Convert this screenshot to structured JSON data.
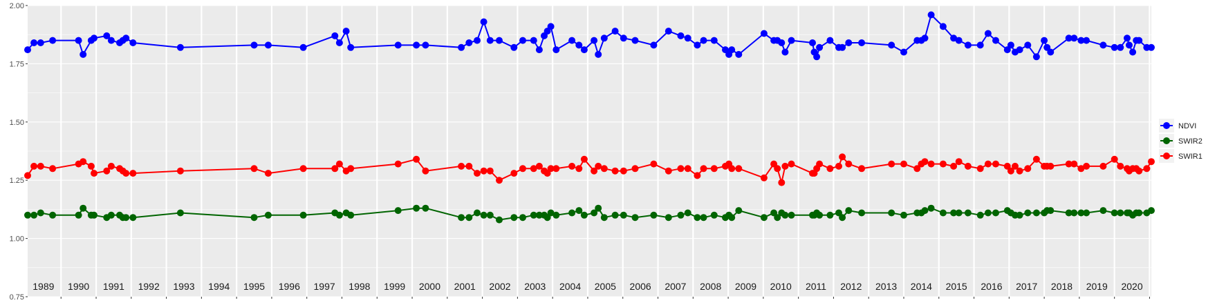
{
  "chart_data": {
    "type": "line",
    "title": "",
    "xlabel": "",
    "ylabel": "",
    "ylim": [
      0.75,
      2.0
    ],
    "yticks": [
      "0.75",
      "1.00",
      "1.25",
      "1.50",
      "1.75",
      "2.00"
    ],
    "xlim": [
      1988.55,
      2020.55
    ],
    "year_labels": [
      "1989",
      "1990",
      "1991",
      "1992",
      "1993",
      "1994",
      "1995",
      "1996",
      "1997",
      "1998",
      "1999",
      "2000",
      "2001",
      "2002",
      "2003",
      "2004",
      "2005",
      "2006",
      "2007",
      "2008",
      "2009",
      "2010",
      "2011",
      "2012",
      "2013",
      "2014",
      "2015",
      "2016",
      "2017",
      "2018",
      "2019",
      "2020"
    ],
    "grid": true,
    "legend_position": "right",
    "series": [
      {
        "name": "NDVI",
        "color": "#0000ff",
        "x": [
          1988.55,
          1988.73,
          1988.92,
          1989.26,
          1990.0,
          1990.13,
          1990.36,
          1990.44,
          1990.8,
          1990.93,
          1991.17,
          1991.26,
          1991.35,
          1991.55,
          1992.9,
          1995.0,
          1995.4,
          1996.4,
          1997.3,
          1997.43,
          1997.62,
          1997.75,
          1999.1,
          1999.62,
          1999.88,
          2000.9,
          2001.12,
          2001.35,
          2001.54,
          2001.72,
          2001.98,
          2002.4,
          2002.65,
          2002.96,
          2003.12,
          2003.26,
          2003.35,
          2003.45,
          2003.6,
          2004.05,
          2004.25,
          2004.4,
          2004.68,
          2004.8,
          2004.97,
          2005.28,
          2005.52,
          2005.85,
          2006.38,
          2006.8,
          2007.15,
          2007.35,
          2007.62,
          2007.8,
          2008.1,
          2008.42,
          2008.52,
          2008.6,
          2008.8,
          2009.52,
          2009.8,
          2009.9,
          2010.02,
          2010.12,
          2010.3,
          2010.9,
          2010.95,
          2011.02,
          2011.1,
          2011.4,
          2011.65,
          2011.75,
          2011.93,
          2012.3,
          2013.15,
          2013.5,
          2013.88,
          2014.0,
          2014.1,
          2014.28,
          2014.62,
          2014.92,
          2015.07,
          2015.33,
          2015.68,
          2015.9,
          2016.12,
          2016.45,
          2016.55,
          2016.67,
          2016.8,
          2017.03,
          2017.28,
          2017.5,
          2017.58,
          2017.68,
          2018.2,
          2018.35,
          2018.55,
          2018.7,
          2019.18,
          2019.5,
          2019.67,
          2019.86,
          2019.92,
          2020.02,
          2020.12,
          2020.2,
          2020.42,
          2020.55
        ],
        "values": [
          1.81,
          1.84,
          1.84,
          1.85,
          1.85,
          1.79,
          1.85,
          1.86,
          1.87,
          1.85,
          1.84,
          1.85,
          1.86,
          1.84,
          1.82,
          1.83,
          1.83,
          1.82,
          1.87,
          1.84,
          1.89,
          1.82,
          1.83,
          1.83,
          1.83,
          1.82,
          1.84,
          1.85,
          1.93,
          1.85,
          1.85,
          1.82,
          1.85,
          1.85,
          1.81,
          1.87,
          1.89,
          1.91,
          1.81,
          1.85,
          1.83,
          1.81,
          1.85,
          1.79,
          1.86,
          1.89,
          1.86,
          1.85,
          1.83,
          1.89,
          1.87,
          1.86,
          1.83,
          1.85,
          1.85,
          1.81,
          1.79,
          1.81,
          1.79,
          1.88,
          1.85,
          1.85,
          1.84,
          1.8,
          1.85,
          1.84,
          1.8,
          1.78,
          1.82,
          1.85,
          1.82,
          1.82,
          1.84,
          1.84,
          1.83,
          1.8,
          1.85,
          1.85,
          1.86,
          1.96,
          1.91,
          1.86,
          1.85,
          1.83,
          1.83,
          1.88,
          1.85,
          1.81,
          1.83,
          1.8,
          1.81,
          1.83,
          1.78,
          1.85,
          1.82,
          1.8,
          1.86,
          1.86,
          1.85,
          1.85,
          1.83,
          1.82,
          1.82,
          1.86,
          1.83,
          1.8,
          1.85,
          1.85,
          1.82,
          1.82
        ]
      },
      {
        "name": "SWIR2",
        "color": "#006400",
        "x": [
          1988.55,
          1988.73,
          1988.92,
          1989.26,
          1990.0,
          1990.13,
          1990.36,
          1990.44,
          1990.8,
          1990.93,
          1991.17,
          1991.26,
          1991.35,
          1991.55,
          1992.9,
          1995.0,
          1995.4,
          1996.4,
          1997.3,
          1997.43,
          1997.62,
          1997.75,
          1999.1,
          1999.62,
          1999.88,
          2000.9,
          2001.12,
          2001.35,
          2001.54,
          2001.72,
          2001.98,
          2002.4,
          2002.65,
          2002.96,
          2003.12,
          2003.26,
          2003.35,
          2003.45,
          2003.6,
          2004.05,
          2004.25,
          2004.4,
          2004.68,
          2004.8,
          2004.97,
          2005.28,
          2005.52,
          2005.85,
          2006.38,
          2006.8,
          2007.15,
          2007.35,
          2007.62,
          2007.8,
          2008.1,
          2008.42,
          2008.52,
          2008.6,
          2008.8,
          2009.52,
          2009.8,
          2009.9,
          2010.02,
          2010.12,
          2010.3,
          2010.9,
          2010.95,
          2011.02,
          2011.1,
          2011.4,
          2011.65,
          2011.75,
          2011.93,
          2012.3,
          2013.15,
          2013.5,
          2013.88,
          2014.0,
          2014.1,
          2014.28,
          2014.62,
          2014.92,
          2015.07,
          2015.33,
          2015.68,
          2015.9,
          2016.12,
          2016.45,
          2016.55,
          2016.67,
          2016.8,
          2017.03,
          2017.28,
          2017.5,
          2017.58,
          2017.68,
          2018.2,
          2018.35,
          2018.55,
          2018.7,
          2019.18,
          2019.5,
          2019.67,
          2019.86,
          2019.92,
          2020.02,
          2020.12,
          2020.2,
          2020.42,
          2020.55
        ],
        "values": [
          1.1,
          1.1,
          1.11,
          1.1,
          1.1,
          1.13,
          1.1,
          1.1,
          1.09,
          1.1,
          1.1,
          1.09,
          1.09,
          1.09,
          1.11,
          1.09,
          1.1,
          1.1,
          1.11,
          1.1,
          1.11,
          1.1,
          1.12,
          1.13,
          1.13,
          1.09,
          1.09,
          1.11,
          1.1,
          1.1,
          1.08,
          1.09,
          1.09,
          1.1,
          1.1,
          1.1,
          1.09,
          1.11,
          1.1,
          1.11,
          1.12,
          1.1,
          1.11,
          1.13,
          1.09,
          1.1,
          1.1,
          1.09,
          1.1,
          1.09,
          1.1,
          1.11,
          1.09,
          1.09,
          1.1,
          1.09,
          1.1,
          1.09,
          1.12,
          1.09,
          1.11,
          1.09,
          1.11,
          1.1,
          1.1,
          1.1,
          1.1,
          1.11,
          1.1,
          1.1,
          1.11,
          1.09,
          1.12,
          1.11,
          1.11,
          1.1,
          1.11,
          1.11,
          1.12,
          1.13,
          1.11,
          1.11,
          1.11,
          1.11,
          1.1,
          1.11,
          1.11,
          1.12,
          1.11,
          1.1,
          1.1,
          1.11,
          1.11,
          1.11,
          1.12,
          1.12,
          1.11,
          1.11,
          1.11,
          1.11,
          1.12,
          1.11,
          1.11,
          1.11,
          1.11,
          1.1,
          1.11,
          1.11,
          1.11,
          1.12
        ]
      },
      {
        "name": "SWIR1",
        "color": "#ff0000",
        "x": [
          1988.55,
          1988.73,
          1988.92,
          1989.26,
          1990.0,
          1990.13,
          1990.36,
          1990.44,
          1990.8,
          1990.93,
          1991.17,
          1991.26,
          1991.35,
          1991.55,
          1992.9,
          1995.0,
          1995.4,
          1996.4,
          1997.3,
          1997.43,
          1997.62,
          1997.75,
          1999.1,
          1999.62,
          1999.88,
          2000.9,
          2001.12,
          2001.35,
          2001.54,
          2001.72,
          2001.98,
          2002.4,
          2002.65,
          2002.96,
          2003.12,
          2003.26,
          2003.35,
          2003.45,
          2003.6,
          2004.05,
          2004.25,
          2004.4,
          2004.68,
          2004.8,
          2004.97,
          2005.28,
          2005.52,
          2005.85,
          2006.38,
          2006.8,
          2007.15,
          2007.35,
          2007.62,
          2007.8,
          2008.1,
          2008.42,
          2008.52,
          2008.6,
          2008.8,
          2009.52,
          2009.8,
          2009.9,
          2010.02,
          2010.12,
          2010.3,
          2010.9,
          2010.95,
          2011.02,
          2011.1,
          2011.4,
          2011.65,
          2011.75,
          2011.93,
          2012.3,
          2013.15,
          2013.5,
          2013.88,
          2014.0,
          2014.1,
          2014.28,
          2014.62,
          2014.92,
          2015.07,
          2015.33,
          2015.68,
          2015.9,
          2016.12,
          2016.45,
          2016.55,
          2016.67,
          2016.8,
          2017.03,
          2017.28,
          2017.5,
          2017.58,
          2017.68,
          2018.2,
          2018.35,
          2018.55,
          2018.7,
          2019.18,
          2019.5,
          2019.67,
          2019.86,
          2019.92,
          2020.02,
          2020.12,
          2020.2,
          2020.42,
          2020.55
        ],
        "values": [
          1.27,
          1.31,
          1.31,
          1.3,
          1.32,
          1.33,
          1.31,
          1.28,
          1.29,
          1.31,
          1.3,
          1.29,
          1.28,
          1.28,
          1.29,
          1.3,
          1.28,
          1.3,
          1.3,
          1.32,
          1.29,
          1.3,
          1.32,
          1.34,
          1.29,
          1.31,
          1.31,
          1.28,
          1.29,
          1.29,
          1.25,
          1.28,
          1.3,
          1.3,
          1.31,
          1.29,
          1.28,
          1.3,
          1.3,
          1.31,
          1.3,
          1.34,
          1.29,
          1.31,
          1.3,
          1.29,
          1.29,
          1.3,
          1.32,
          1.29,
          1.3,
          1.3,
          1.27,
          1.3,
          1.3,
          1.31,
          1.32,
          1.3,
          1.3,
          1.26,
          1.32,
          1.3,
          1.24,
          1.31,
          1.32,
          1.28,
          1.28,
          1.3,
          1.32,
          1.3,
          1.31,
          1.35,
          1.32,
          1.3,
          1.32,
          1.32,
          1.3,
          1.32,
          1.33,
          1.32,
          1.32,
          1.31,
          1.33,
          1.31,
          1.3,
          1.32,
          1.32,
          1.31,
          1.29,
          1.31,
          1.29,
          1.3,
          1.34,
          1.31,
          1.31,
          1.31,
          1.32,
          1.32,
          1.3,
          1.31,
          1.31,
          1.34,
          1.31,
          1.3,
          1.29,
          1.3,
          1.3,
          1.29,
          1.3,
          1.33
        ]
      }
    ]
  }
}
